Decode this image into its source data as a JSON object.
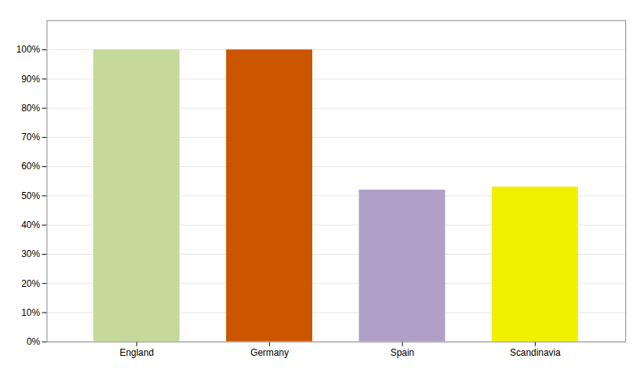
{
  "chart_data": {
    "type": "bar",
    "categories": [
      "England",
      "Germany",
      "Spain",
      "Scandinavia"
    ],
    "values": [
      100,
      100,
      52,
      53
    ],
    "colors": [
      "#c5d99a",
      "#cc5500",
      "#b0a0c8",
      "#f0f000"
    ],
    "ylim": [
      0,
      110
    ],
    "yticks": [
      {
        "value": 0,
        "label": "0%"
      },
      {
        "value": 10,
        "label": "10%"
      },
      {
        "value": 20,
        "label": "20%"
      },
      {
        "value": 30,
        "label": "30%"
      },
      {
        "value": 40,
        "label": "40%"
      },
      {
        "value": 50,
        "label": "50%"
      },
      {
        "value": 60,
        "label": "60%"
      },
      {
        "value": 70,
        "label": "70%"
      },
      {
        "value": 80,
        "label": "80%"
      },
      {
        "value": 90,
        "label": "90%"
      },
      {
        "value": 100,
        "label": "100%"
      }
    ],
    "grid": true
  }
}
